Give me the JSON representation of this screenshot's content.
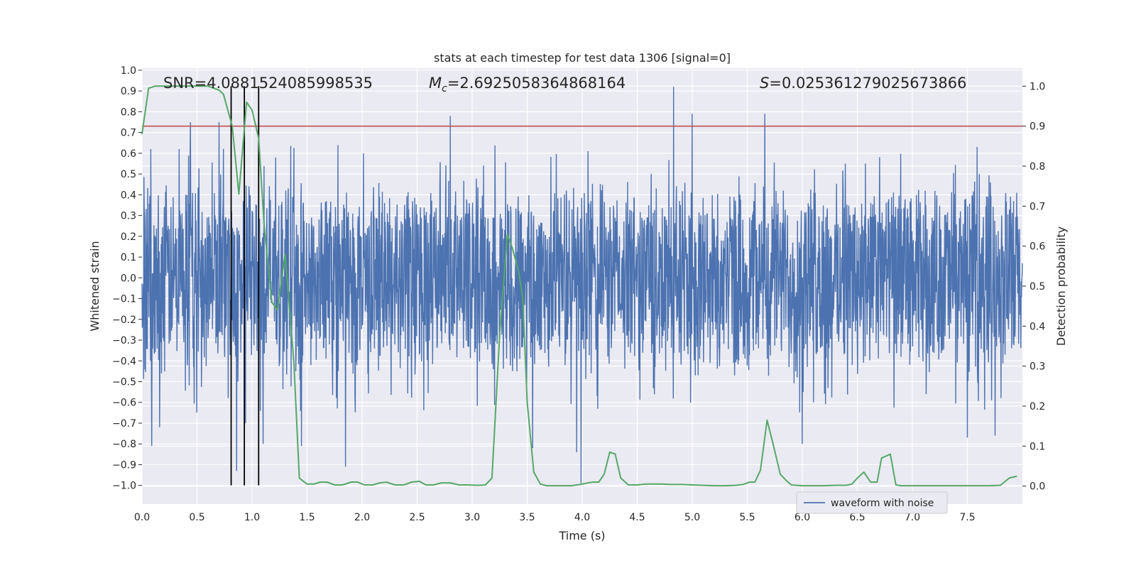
{
  "chart_data": {
    "type": "line",
    "title": "stats at each timestep for test data 1306 [signal=0]",
    "xlabel": "Time (s)",
    "ylabel": "Whitened strain",
    "y2label": "Detection probability",
    "xlim": [
      0.0,
      8.0
    ],
    "ylim": [
      -1.09,
      1.01
    ],
    "y2lim": [
      -0.045,
      1.045
    ],
    "xticks": [
      "0.0",
      "0.5",
      "1.0",
      "1.5",
      "2.0",
      "2.5",
      "3.0",
      "3.5",
      "4.0",
      "4.5",
      "5.0",
      "5.5",
      "6.0",
      "6.5",
      "7.0",
      "7.5"
    ],
    "yticks": [
      "−1.0",
      "−0.9",
      "−0.8",
      "−0.7",
      "−0.6",
      "−0.5",
      "−0.4",
      "−0.3",
      "−0.2",
      "−0.1",
      "0.0",
      "0.1",
      "0.2",
      "0.3",
      "0.4",
      "0.5",
      "0.6",
      "0.7",
      "0.8",
      "0.9",
      "1.0"
    ],
    "y2ticks": [
      "0.0",
      "0.1",
      "0.2",
      "0.3",
      "0.4",
      "0.5",
      "0.6",
      "0.7",
      "0.8",
      "0.9",
      "1.0"
    ],
    "annotations": {
      "snr": "SNR=4.0881524085998535",
      "mc_symbol": "M",
      "mc_sub": "c",
      "mc_value": "=2.6925058364868164",
      "s_symbol": "S",
      "s_value": "=0.025361279025673866"
    },
    "threshold": {
      "value": 0.9,
      "axis": "right",
      "color": "#c44e52"
    },
    "vlines": [
      0.81,
      0.93,
      1.06
    ],
    "legend": {
      "entries": [
        "waveform with noise"
      ],
      "location": "lower-right"
    },
    "series": [
      {
        "name": "waveform with noise",
        "axis": "left",
        "color": "#4c72b0",
        "style": "dense noise, band approx ±0.45 with spikes up to 0.92 and down to -0.99",
        "peaks": [
          {
            "x": 0.08,
            "y": 0.62
          },
          {
            "x": 0.09,
            "y": -0.81
          },
          {
            "x": 0.16,
            "y": -0.72
          },
          {
            "x": 0.44,
            "y": 0.75
          },
          {
            "x": 0.7,
            "y": 0.75
          },
          {
            "x": 0.86,
            "y": -0.93
          },
          {
            "x": 0.94,
            "y": -0.7
          },
          {
            "x": 1.1,
            "y": -0.8
          },
          {
            "x": 1.45,
            "y": -0.81
          },
          {
            "x": 1.85,
            "y": -0.91
          },
          {
            "x": 2.8,
            "y": 0.78
          },
          {
            "x": 3.55,
            "y": -0.82
          },
          {
            "x": 3.95,
            "y": -0.84
          },
          {
            "x": 3.99,
            "y": -0.99
          },
          {
            "x": 4.83,
            "y": 0.92
          },
          {
            "x": 5.0,
            "y": 0.79
          },
          {
            "x": 5.66,
            "y": 0.79
          },
          {
            "x": 6.0,
            "y": -0.8
          },
          {
            "x": 7.5,
            "y": -0.77
          },
          {
            "x": 7.75,
            "y": -0.76
          }
        ]
      },
      {
        "name": "detection probability",
        "axis": "right",
        "color": "#55a868",
        "x": [
          0.0,
          0.06,
          0.12,
          0.2,
          0.3,
          0.4,
          0.5,
          0.6,
          0.7,
          0.74,
          0.82,
          0.88,
          0.95,
          1.0,
          1.06,
          1.11,
          1.18,
          1.23,
          1.3,
          1.38,
          1.43,
          1.5,
          1.56,
          1.62,
          1.68,
          1.75,
          1.82,
          1.9,
          1.96,
          2.02,
          2.1,
          2.16,
          2.22,
          2.3,
          2.38,
          2.45,
          2.52,
          2.58,
          2.65,
          2.72,
          2.8,
          2.88,
          2.96,
          3.05,
          3.12,
          3.18,
          3.25,
          3.32,
          3.36,
          3.42,
          3.46,
          3.5,
          3.56,
          3.62,
          3.68,
          3.75,
          3.82,
          3.9,
          3.98,
          4.05,
          4.1,
          4.15,
          4.2,
          4.25,
          4.3,
          4.35,
          4.42,
          4.5,
          4.58,
          4.65,
          4.72,
          4.8,
          4.9,
          5.0,
          5.1,
          5.2,
          5.3,
          5.4,
          5.46,
          5.52,
          5.57,
          5.62,
          5.68,
          5.73,
          5.8,
          5.85,
          5.9,
          6.0,
          6.1,
          6.2,
          6.3,
          6.4,
          6.45,
          6.5,
          6.56,
          6.62,
          6.68,
          6.72,
          6.8,
          6.85,
          6.9,
          7.0,
          7.1,
          7.2,
          7.3,
          7.4,
          7.5,
          7.6,
          7.7,
          7.8,
          7.88,
          7.95
        ],
        "y": [
          0.88,
          0.995,
          1.0,
          1.0,
          1.0,
          1.0,
          1.0,
          1.0,
          0.99,
          0.98,
          0.9,
          0.73,
          0.96,
          0.94,
          0.87,
          0.65,
          0.46,
          0.44,
          0.58,
          0.31,
          0.02,
          0.005,
          0.005,
          0.01,
          0.01,
          0.003,
          0.003,
          0.01,
          0.01,
          0.003,
          0.003,
          0.008,
          0.01,
          0.003,
          0.003,
          0.01,
          0.012,
          0.003,
          0.003,
          0.008,
          0.008,
          0.003,
          0.003,
          0.002,
          0.003,
          0.02,
          0.38,
          0.63,
          0.6,
          0.54,
          0.47,
          0.21,
          0.035,
          0.005,
          0.001,
          0.001,
          0.001,
          0.001,
          0.004,
          0.008,
          0.01,
          0.01,
          0.03,
          0.085,
          0.08,
          0.02,
          0.003,
          0.003,
          0.005,
          0.005,
          0.005,
          0.004,
          0.004,
          0.003,
          0.002,
          0.001,
          0.001,
          0.002,
          0.004,
          0.01,
          0.01,
          0.04,
          0.165,
          0.11,
          0.03,
          0.015,
          0.003,
          0.001,
          0.001,
          0.001,
          0.002,
          0.002,
          0.005,
          0.02,
          0.035,
          0.01,
          0.01,
          0.07,
          0.08,
          0.003,
          0.001,
          0.001,
          0.001,
          0.001,
          0.001,
          0.001,
          0.001,
          0.001,
          0.001,
          0.002,
          0.02,
          0.025
        ]
      }
    ]
  }
}
